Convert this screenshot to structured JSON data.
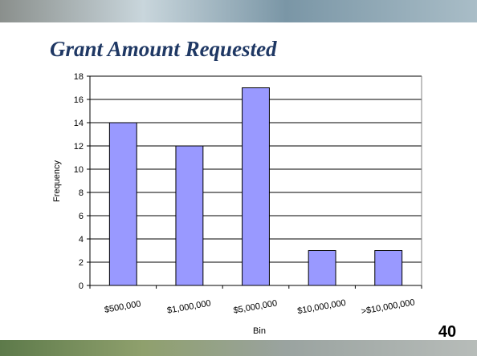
{
  "chart_data": {
    "type": "bar",
    "title": "Grant Amount Requested",
    "categories": [
      "$500,000",
      "$1,000,000",
      "$5,000,000",
      "$10,000,000",
      ">$10,000,000"
    ],
    "values": [
      14,
      12,
      17,
      3,
      3
    ],
    "color": "#9999ff",
    "x_label": "Bin",
    "y_label": "Frequency",
    "ylim": [
      0,
      18
    ],
    "yticks": [
      0,
      2,
      4,
      6,
      8,
      10,
      12,
      14,
      16,
      18
    ],
    "grid": true
  },
  "slide_number": "40"
}
